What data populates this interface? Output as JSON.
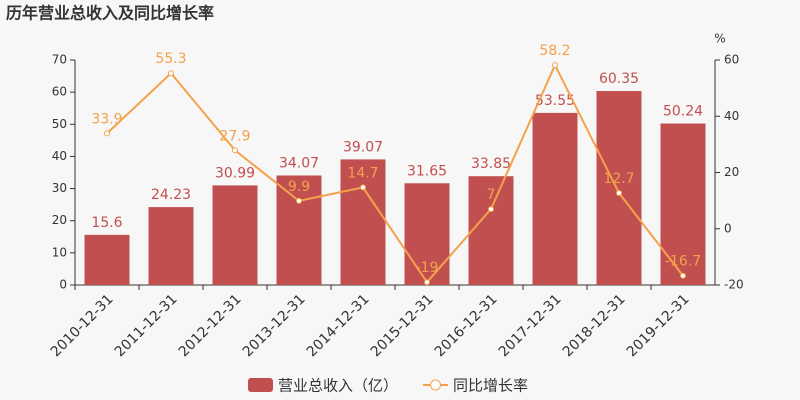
{
  "chart_data": {
    "type": "bar",
    "title": "历年营业总收入及同比增长率",
    "categories": [
      "2010-12-31",
      "2011-12-31",
      "2012-12-31",
      "2013-12-31",
      "2014-12-31",
      "2015-12-31",
      "2016-12-31",
      "2017-12-31",
      "2018-12-31",
      "2019-12-31"
    ],
    "series": [
      {
        "name": "营业总收入（亿）",
        "type": "bar",
        "color": "#c14f4f",
        "values": [
          15.6,
          24.23,
          30.99,
          34.07,
          39.07,
          31.65,
          33.85,
          53.55,
          60.35,
          50.24
        ]
      },
      {
        "name": "同比增长率",
        "type": "line",
        "axis": "y2",
        "color": "#f3a24b",
        "values": [
          33.9,
          55.3,
          27.9,
          9.9,
          14.7,
          -19,
          7,
          58.2,
          12.7,
          -16.7
        ]
      }
    ],
    "ylim": [
      0,
      70
    ],
    "yticks": [
      0,
      10,
      20,
      30,
      40,
      50,
      60,
      70
    ],
    "y2label": "%",
    "y2lim": [
      -20,
      60
    ],
    "y2ticks": [
      -20,
      0,
      20,
      40,
      60
    ],
    "legend": "bottom"
  }
}
